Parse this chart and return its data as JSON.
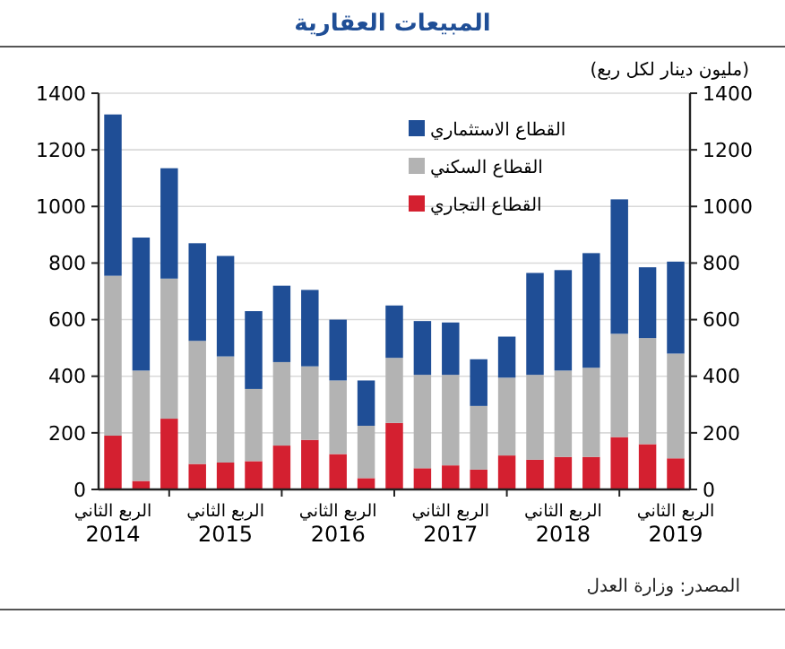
{
  "chart_data": {
    "type": "bar",
    "stacked": true,
    "title": "المبيعات العقارية",
    "y2label": "(مليون دينار لكل ربع)",
    "categories": [
      "الربع الثاني 2014",
      null,
      null,
      null,
      "الربع الثاني 2015",
      null,
      null,
      null,
      "الربع الثاني 2016",
      null,
      null,
      null,
      "الربع الثاني 2017",
      null,
      null,
      null,
      "الربع الثاني 2018",
      null,
      null,
      null,
      "الربع الثاني 2019"
    ],
    "series": [
      {
        "name": "القطاع التجاري",
        "color": "#d42030",
        "values": [
          190,
          30,
          250,
          90,
          95,
          100,
          155,
          175,
          125,
          40,
          235,
          75,
          85,
          70,
          120,
          105,
          115,
          115,
          185,
          160,
          110
        ]
      },
      {
        "name": "القطاع السكني",
        "color": "#b3b3b3",
        "values": [
          565,
          390,
          495,
          435,
          375,
          255,
          295,
          260,
          260,
          185,
          230,
          330,
          320,
          225,
          275,
          300,
          305,
          315,
          365,
          375,
          370
        ]
      },
      {
        "name": "القطاع الاستثماري",
        "color": "#1f4e96",
        "values": [
          570,
          470,
          390,
          345,
          355,
          275,
          270,
          270,
          215,
          160,
          185,
          190,
          185,
          165,
          145,
          360,
          355,
          405,
          475,
          250,
          325
        ]
      }
    ],
    "ylim": [
      0,
      1400
    ],
    "yticks": [
      0,
      200,
      400,
      600,
      800,
      1000,
      1200,
      1400
    ],
    "y2lim": [
      0,
      1400
    ],
    "y2ticks": [
      0,
      200,
      400,
      600,
      800,
      1000,
      1200,
      1400
    ],
    "grid": "y",
    "legend": "top right",
    "annotations": [
      "المصدر: وزارة العدل"
    ]
  }
}
